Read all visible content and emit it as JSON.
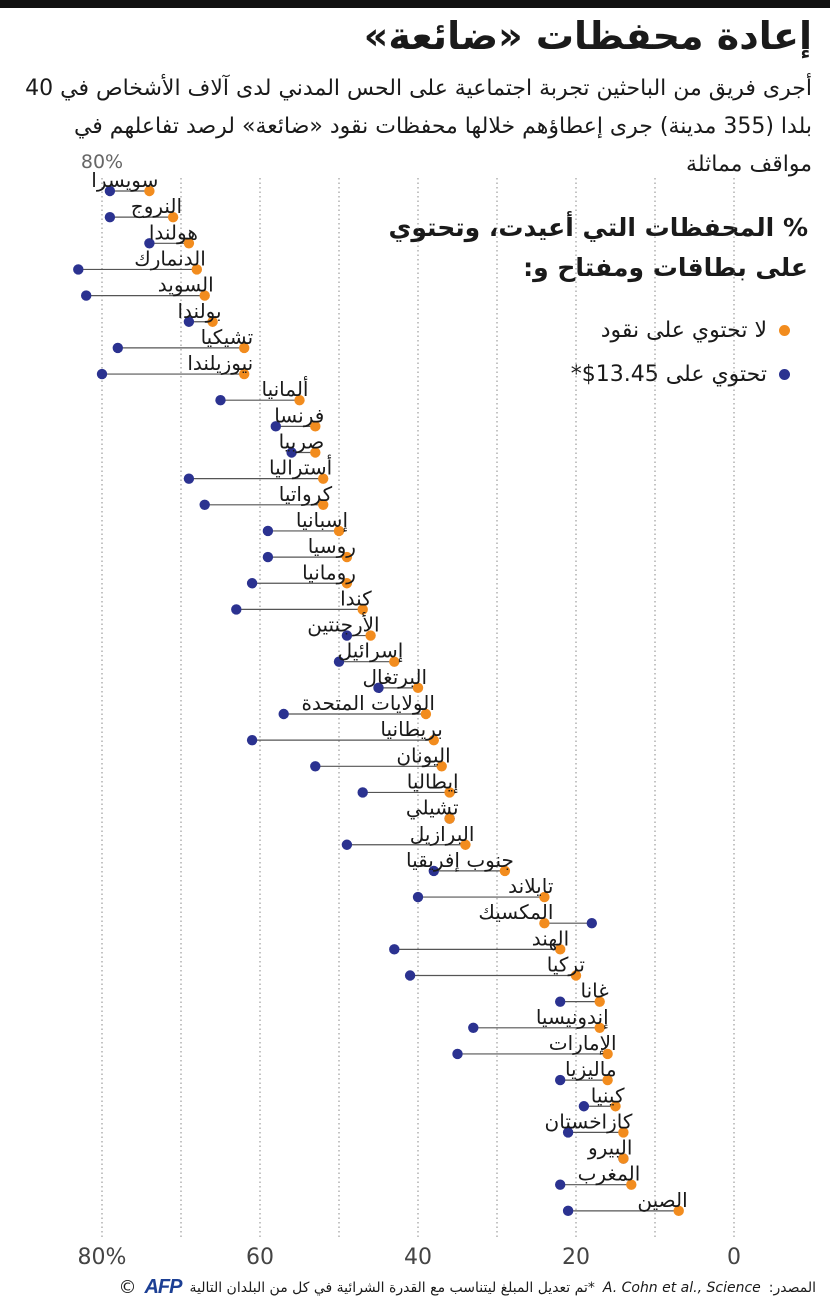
{
  "title": "إعادة محفظات «ضائعة»",
  "subtitle": "أجرى فريق من الباحثين تجربة اجتماعية على الحس المدني لدى آلاف الأشخاص في 40 بلدا (355 مدينة) جرى إعطاؤهم خلالها محفظات نقود «ضائعة» لرصد تفاعلهم في مواقف مماثلة",
  "legend": {
    "title": "% المحفظات التي أعيدت، وتحتوي على بطاقات ومفتاح و:",
    "no_money": "لا تحتوي على نقود",
    "with_money": "تحتوي على 13.45$*"
  },
  "colors": {
    "no_money": "#f28c1e",
    "with_money": "#2b3290",
    "line": "#555555",
    "grid": "#888888"
  },
  "chart_data": {
    "type": "scatter",
    "subtype": "dumbbell",
    "x_axis": {
      "reversed": true,
      "ticks": [
        "80%",
        "60",
        "40",
        "20",
        "0"
      ],
      "top_tick": "80%",
      "range": [
        0,
        88
      ]
    },
    "series": [
      {
        "name": "لا تحتوي على نقود",
        "color": "#f28c1e"
      },
      {
        "name": "تحتوي على 13.45$*",
        "color": "#2b3290"
      }
    ],
    "countries": [
      {
        "name": "سويسرا",
        "no_money": 74,
        "with_money": 79
      },
      {
        "name": "النروج",
        "no_money": 71,
        "with_money": 79
      },
      {
        "name": "هولندا",
        "no_money": 69,
        "with_money": 74
      },
      {
        "name": "الدنمارك",
        "no_money": 68,
        "with_money": 83
      },
      {
        "name": "السويد",
        "no_money": 67,
        "with_money": 82
      },
      {
        "name": "بولندا",
        "no_money": 66,
        "with_money": 69
      },
      {
        "name": "تشيكيا",
        "no_money": 62,
        "with_money": 78
      },
      {
        "name": "نيوزيلندا",
        "no_money": 62,
        "with_money": 80
      },
      {
        "name": "ألمانيا",
        "no_money": 55,
        "with_money": 65
      },
      {
        "name": "فرنسا",
        "no_money": 53,
        "with_money": 58
      },
      {
        "name": "صربيا",
        "no_money": 53,
        "with_money": 56
      },
      {
        "name": "أستراليا",
        "no_money": 52,
        "with_money": 69
      },
      {
        "name": "كرواتيا",
        "no_money": 52,
        "with_money": 67
      },
      {
        "name": "إسبانيا",
        "no_money": 50,
        "with_money": 59
      },
      {
        "name": "روسيا",
        "no_money": 49,
        "with_money": 59
      },
      {
        "name": "رومانيا",
        "no_money": 49,
        "with_money": 61
      },
      {
        "name": "كندا",
        "no_money": 47,
        "with_money": 63
      },
      {
        "name": "الأرجنتين",
        "no_money": 46,
        "with_money": 49
      },
      {
        "name": "إسرائيل",
        "no_money": 43,
        "with_money": 50
      },
      {
        "name": "البرتغال",
        "no_money": 40,
        "with_money": 45
      },
      {
        "name": "الولايات المتحدة",
        "no_money": 39,
        "with_money": 57
      },
      {
        "name": "بريطانيا",
        "no_money": 38,
        "with_money": 61
      },
      {
        "name": "اليونان",
        "no_money": 37,
        "with_money": 53
      },
      {
        "name": "إيطاليا",
        "no_money": 36,
        "with_money": 47
      },
      {
        "name": "تشيلي",
        "no_money": 36,
        "with_money": 36
      },
      {
        "name": "البرازيل",
        "no_money": 34,
        "with_money": 49
      },
      {
        "name": "جنوب إفريقيا",
        "no_money": 29,
        "with_money": 38
      },
      {
        "name": "تايلاند",
        "no_money": 24,
        "with_money": 40
      },
      {
        "name": "المكسيك",
        "no_money": 24,
        "with_money": 18
      },
      {
        "name": "الهند",
        "no_money": 22,
        "with_money": 43
      },
      {
        "name": "تركيا",
        "no_money": 20,
        "with_money": 41
      },
      {
        "name": "غانا",
        "no_money": 17,
        "with_money": 22
      },
      {
        "name": "إندونيسيا",
        "no_money": 17,
        "with_money": 33
      },
      {
        "name": "الإمارات",
        "no_money": 16,
        "with_money": 35
      },
      {
        "name": "ماليزيا",
        "no_money": 16,
        "with_money": 22
      },
      {
        "name": "كينيا",
        "no_money": 15,
        "with_money": 19
      },
      {
        "name": "كازاخستان",
        "no_money": 14,
        "with_money": 21
      },
      {
        "name": "البيرو",
        "no_money": 14,
        "with_money": 14
      },
      {
        "name": "المغرب",
        "no_money": 13,
        "with_money": 22
      },
      {
        "name": "الصين",
        "no_money": 7,
        "with_money": 21
      }
    ]
  },
  "footer": {
    "source_label": "المصدر:",
    "source_cite": "A. Cohn et al., Science",
    "note": "*تم تعديل المبلغ ليتناسب مع القدرة الشرائية في كل من البلدان التالية",
    "logo": "AFP",
    "copyright": "©"
  }
}
